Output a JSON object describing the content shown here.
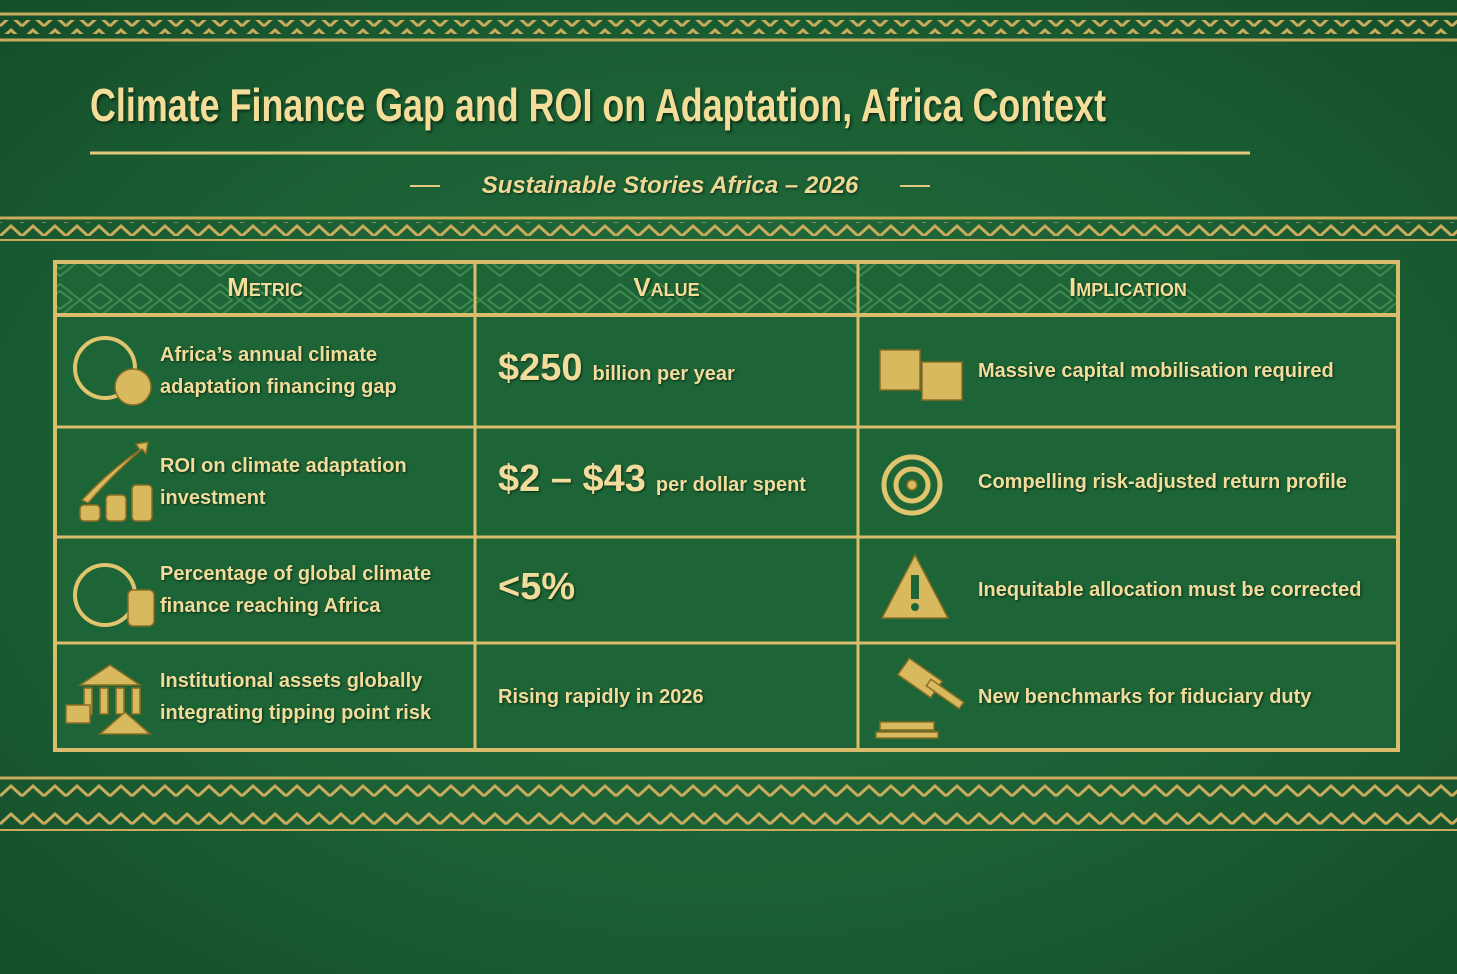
{
  "header": {
    "title": "Climate Finance Gap and ROI on Adaptation, Africa Context",
    "subtitle": "Sustainable Stories Africa – 2026"
  },
  "table": {
    "columns": [
      "Metric",
      "Value",
      "Implication"
    ],
    "rows": [
      [
        "Africa’s annual climate adaptation financing gap",
        {
          "lead": "$250",
          "rest": "billion per year"
        },
        "Massive capital mobilisation required"
      ],
      [
        "ROI on climate adaptation investment",
        {
          "lead": "$2 – $43",
          "rest": "per dollar spent"
        },
        "Compelling risk-adjusted return profile"
      ],
      [
        "Percentage of global climate finance reaching Africa",
        {
          "lead": "<5%"
        },
        "Inequitable allocation must be corrected"
      ],
      [
        "Institutional assets globally integrating tipping point risk",
        "Rising rapidly in 2026",
        "New benchmarks for fiduciary duty"
      ]
    ]
  }
}
